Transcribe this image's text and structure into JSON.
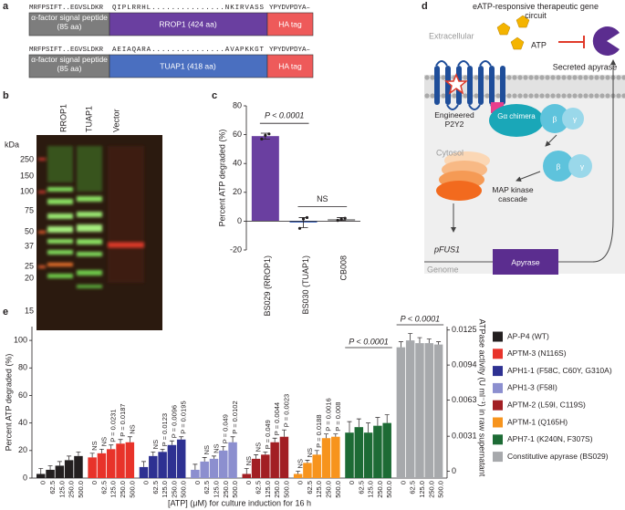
{
  "panel_labels": [
    "a",
    "b",
    "c",
    "d",
    "e"
  ],
  "constructs": [
    {
      "sequence": [
        "MRFPSIFT..EGVSLDKR",
        "QIPLRRHL...............NKIRVASS",
        "YPYDVPDYA–"
      ],
      "signal_peptide": "α-factor signal peptide (85 aa)",
      "protein": "RROP1 (424 aa)",
      "tag": "HA tag"
    },
    {
      "sequence": [
        "MRFPSIFT..EGVSLDKR",
        "AEIAQARA...............AVAPKKGT",
        "YPYDVPDYA–"
      ],
      "signal_peptide": "α-factor signal peptide (85 aa)",
      "protein": "TUAP1 (418 aa)",
      "tag": "HA tag"
    }
  ],
  "gel": {
    "lanes": [
      "RROP1",
      "TUAP1",
      "Vector"
    ],
    "unit": "kDa",
    "markers": [
      250,
      150,
      100,
      75,
      50,
      37,
      25,
      20,
      15
    ]
  },
  "diagram": {
    "title": "eATP-responsive therapeutic gene circuit",
    "extracellular": "Extracellular",
    "atp": "ATP",
    "secreted": "Secreted apyrase",
    "receptor": "Engineered P2Y2",
    "g_alpha": "Gα chimera",
    "beta": "β",
    "gamma": "γ",
    "cytosol": "Cytosol",
    "mapk": "MAP kinase cascade",
    "promoter": "pFUS1",
    "genome": "Genome",
    "gene": "Apyrase"
  },
  "chart_data": [
    {
      "type": "bar",
      "y_label": "Percent ATP degraded (%)",
      "categories": [
        "BS029 (RROP1)",
        "BS030 (TUAP1)",
        "CB008"
      ],
      "values": [
        59,
        -1,
        1.5
      ],
      "errors": [
        2,
        3.5,
        1
      ],
      "points": [
        [
          57,
          59.5,
          60.5
        ],
        [
          -5,
          1.5,
          2.5
        ],
        [
          0.5,
          1.5,
          2
        ]
      ],
      "colors": [
        "#6a3fa0",
        "#4a6fc0",
        "#9d9d9d"
      ],
      "ylim": [
        -20,
        80
      ],
      "yticks": [
        -20,
        0,
        20,
        40,
        60,
        80
      ],
      "annotations": [
        "P < 0.0001",
        "NS"
      ]
    },
    {
      "type": "grouped-bar",
      "y_label": "Percent ATP degraded (%)",
      "y2_label": "ATPase activity (U ml⁻¹) in raw supernatant",
      "x_label": "[ATP] (μM) for culture induction for 16 h",
      "categories": [
        "0",
        "62.5",
        "125.0",
        "250.0",
        "500.0"
      ],
      "ylim": [
        0,
        110
      ],
      "yticks": [
        0,
        20,
        40,
        60,
        80,
        100
      ],
      "y2lim": [
        -0.0006,
        0.0128
      ],
      "y2ticks": [
        0,
        0.0031,
        0.0063,
        0.0094,
        0.0125
      ],
      "series": [
        {
          "name": "AP-P4 (WT)",
          "color": "#231f20",
          "values": [
            3,
            6,
            9,
            13,
            16
          ],
          "errors": [
            4,
            3,
            3,
            3,
            3
          ],
          "labels": [
            null,
            null,
            null,
            null,
            null
          ]
        },
        {
          "name": "APTM-3 (N116S)",
          "color": "#e8332a",
          "values": [
            15,
            18,
            21,
            25,
            26
          ],
          "errors": [
            3,
            3,
            3,
            3,
            4
          ],
          "labels": [
            "NS",
            "NS",
            "P = 0.0231",
            "P = 0.0187",
            "NS"
          ]
        },
        {
          "name": "APH1-1 (F58C, C60Y, G310A)",
          "color": "#2e3192",
          "values": [
            8,
            16,
            19,
            24,
            28
          ],
          "errors": [
            4,
            3,
            2,
            3,
            2
          ],
          "labels": [
            null,
            "NS",
            "P = 0.0123",
            "P = 0.0096",
            "P = 0.0195"
          ]
        },
        {
          "name": "APH1-3 (F58I)",
          "color": "#8c8fcf",
          "values": [
            6,
            12,
            14,
            20,
            26
          ],
          "errors": [
            4,
            3,
            2,
            3,
            4
          ],
          "labels": [
            null,
            "NS",
            "NS",
            "P = 0.049",
            "P = 0.0102"
          ]
        },
        {
          "name": "APTM-2 (L59I, C119S)",
          "color": "#a21f24",
          "values": [
            3,
            14,
            17,
            26,
            30
          ],
          "errors": [
            4,
            3,
            2,
            3,
            5
          ],
          "labels": [
            "NS",
            "NS",
            "P = 0.049",
            "P = 0.0044",
            "P = 0.0023"
          ]
        },
        {
          "name": "APTM-1 (Q165H)",
          "color": "#f7941d",
          "values": [
            3,
            11,
            17,
            29,
            30
          ],
          "errors": [
            2,
            2,
            3,
            3,
            2
          ],
          "labels": [
            "NS",
            "NS",
            "P = 0.0188",
            "P = 0.0016",
            "P = 0.008"
          ]
        },
        {
          "name": "APH7-1 (K240N, F307S)",
          "color": "#1d6b35",
          "values": [
            33,
            37,
            33,
            38,
            40
          ],
          "errors": [
            8,
            6,
            7,
            6,
            6
          ],
          "labels": [
            null,
            null,
            null,
            null,
            null
          ],
          "annotation": "P < 0.0001"
        },
        {
          "name": "Constitutive apyrase (BS029)",
          "color": "#a7a9ac",
          "values": [
            95,
            100,
            98,
            98,
            97
          ],
          "errors": [
            4,
            5,
            4,
            3,
            2
          ],
          "labels": [
            null,
            null,
            null,
            null,
            null
          ],
          "annotation": "P < 0.0001"
        }
      ]
    }
  ]
}
